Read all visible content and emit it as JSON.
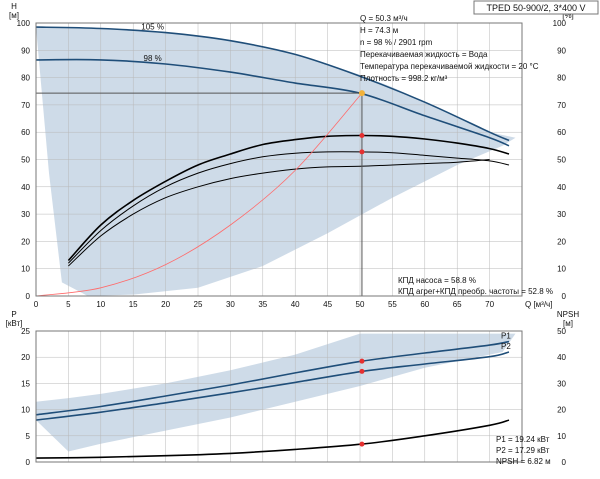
{
  "model_label": "TPED 50-900/2, 3*400 V",
  "colors": {
    "envelope": "#c9d7e6",
    "curve": "#1f4e79",
    "eff": "#000000",
    "system": "#ff6b6b",
    "op_point": "#e53030",
    "op_head_point": "#f2b23a",
    "grid": "#b8b8b8",
    "frame": "#777777"
  },
  "info_top": [
    "Q = 50.3 м³/ч",
    "H = 74.3 м",
    "n = 98 % / 2901 rpm",
    "Перекачиваемая жидкость = Вода",
    "Температура перекачиваемой жидкости = 20 °C",
    "Плотность = 998.2 кг/м³"
  ],
  "info_eff": [
    "КПД насоса = 58.8 %",
    "КПД агрег+КПД преобр. частоты = 52.8 %"
  ],
  "info_bottom": [
    "P1 = 19.24 кВт",
    "P2 = 17.29 кВт",
    "NPSH = 6.82 м"
  ],
  "chart_data": [
    {
      "type": "line",
      "title": "",
      "xlabel": "Q [м³/ч]",
      "ylabel_left": "H [м]",
      "ylabel_right": "eta [%]",
      "xlim": [
        0,
        75
      ],
      "ylim": [
        0,
        100
      ],
      "xticks": [
        0,
        5,
        10,
        15,
        20,
        25,
        30,
        35,
        40,
        45,
        50,
        55,
        60,
        65,
        70
      ],
      "yticks": [
        0,
        10,
        20,
        30,
        40,
        50,
        60,
        70,
        80,
        90,
        100
      ],
      "grid": true,
      "series": [
        {
          "name": "105 %",
          "role": "head",
          "x": [
            0,
            10,
            20,
            30,
            40,
            50,
            60,
            70,
            73
          ],
          "y": [
            98.5,
            98,
            96.5,
            93.5,
            88.5,
            80.5,
            71,
            60,
            57
          ]
        },
        {
          "name": "98 %",
          "role": "head",
          "x": [
            0,
            10,
            20,
            30,
            40,
            50,
            60,
            70,
            73
          ],
          "y": [
            86.5,
            86.5,
            85,
            82,
            78,
            74.3,
            66,
            58,
            55
          ]
        },
        {
          "role": "efficiency",
          "x": [
            5,
            10,
            15,
            20,
            25,
            30,
            35,
            40,
            45,
            50,
            55,
            60,
            65,
            70,
            73
          ],
          "y": [
            13,
            26,
            35,
            42,
            48,
            52,
            55.5,
            57.3,
            58.5,
            58.8,
            58.5,
            57.5,
            56,
            54,
            52
          ]
        },
        {
          "role": "efficiency",
          "x": [
            5,
            10,
            15,
            20,
            25,
            30,
            35,
            40,
            45,
            50,
            55,
            60,
            65,
            70,
            73
          ],
          "y": [
            12,
            24,
            33,
            40,
            45,
            48.5,
            51,
            52.3,
            52.8,
            52.8,
            52.5,
            51.5,
            50.5,
            49.5,
            48
          ]
        },
        {
          "role": "efficiency",
          "x": [
            5,
            10,
            15,
            20,
            25,
            30,
            35,
            40,
            45,
            50,
            55,
            60,
            65,
            70
          ],
          "y": [
            11,
            22,
            30,
            36,
            40,
            43,
            45,
            46.5,
            47.3,
            47.5,
            48,
            48.5,
            49,
            50
          ]
        },
        {
          "role": "system",
          "x": [
            0,
            10,
            20,
            30,
            40,
            50.3
          ],
          "y": [
            0,
            3,
            11.5,
            26,
            46,
            74.3
          ]
        }
      ],
      "envelope": {
        "x": [
          0,
          5,
          10,
          15,
          20,
          25,
          30,
          35,
          40,
          45,
          50,
          55,
          60,
          65,
          70,
          74,
          72,
          65,
          55,
          45,
          35,
          25,
          15,
          8,
          4,
          2,
          0
        ],
        "y": [
          98.5,
          98.5,
          98,
          97.5,
          96.5,
          95,
          93.5,
          91,
          88.5,
          85,
          81,
          76.5,
          71,
          65.5,
          60,
          58,
          55,
          48,
          36,
          23,
          11,
          3,
          0.5,
          0,
          5,
          45,
          98.5
        ]
      },
      "operating_point": {
        "x": 50.3,
        "head": 74.3,
        "eff_markers": [
          58.8,
          52.8
        ]
      }
    },
    {
      "type": "line",
      "title": "",
      "ylabel_left": "P [кВт]",
      "ylabel_right": "NPSH [м]",
      "xlim": [
        0,
        75
      ],
      "ylim_left": [
        0,
        25
      ],
      "ylim_right": [
        0,
        50
      ],
      "yticks_left": [
        0,
        5,
        10,
        15,
        20,
        25
      ],
      "yticks_right": [
        0,
        10,
        20,
        30,
        40,
        50
      ],
      "grid": true,
      "series": [
        {
          "name": "P1",
          "axis": "left",
          "x": [
            0,
            10,
            20,
            30,
            40,
            50.3,
            60,
            70,
            73
          ],
          "y": [
            9,
            10.6,
            12.6,
            14.7,
            17,
            19.24,
            20.8,
            22.3,
            23
          ]
        },
        {
          "name": "P2",
          "axis": "left",
          "x": [
            0,
            10,
            20,
            30,
            40,
            50.3,
            60,
            70,
            73
          ],
          "y": [
            8,
            9.5,
            11.3,
            13.2,
            15.2,
            17.29,
            18.7,
            20.1,
            21
          ]
        },
        {
          "role": "npsh",
          "axis": "right",
          "x": [
            0,
            10,
            20,
            30,
            40,
            50.3,
            60,
            70,
            73
          ],
          "y": [
            1.5,
            1.8,
            2.4,
            3.3,
            4.8,
            6.82,
            10,
            14,
            16
          ]
        }
      ],
      "envelope": {
        "x": [
          0,
          5,
          10,
          20,
          30,
          40,
          50,
          60,
          70,
          74,
          72,
          60,
          50,
          40,
          30,
          20,
          10,
          5,
          0
        ],
        "y": [
          11.5,
          12.2,
          13,
          15,
          17.5,
          20.5,
          24.5,
          24.5,
          24.5,
          24.5,
          21,
          18,
          14.5,
          11.5,
          8.5,
          6,
          3.5,
          2,
          8
        ]
      },
      "operating_point": {
        "x": 50.3,
        "p1": 19.24,
        "p2": 17.29,
        "npsh": 6.82
      }
    }
  ]
}
